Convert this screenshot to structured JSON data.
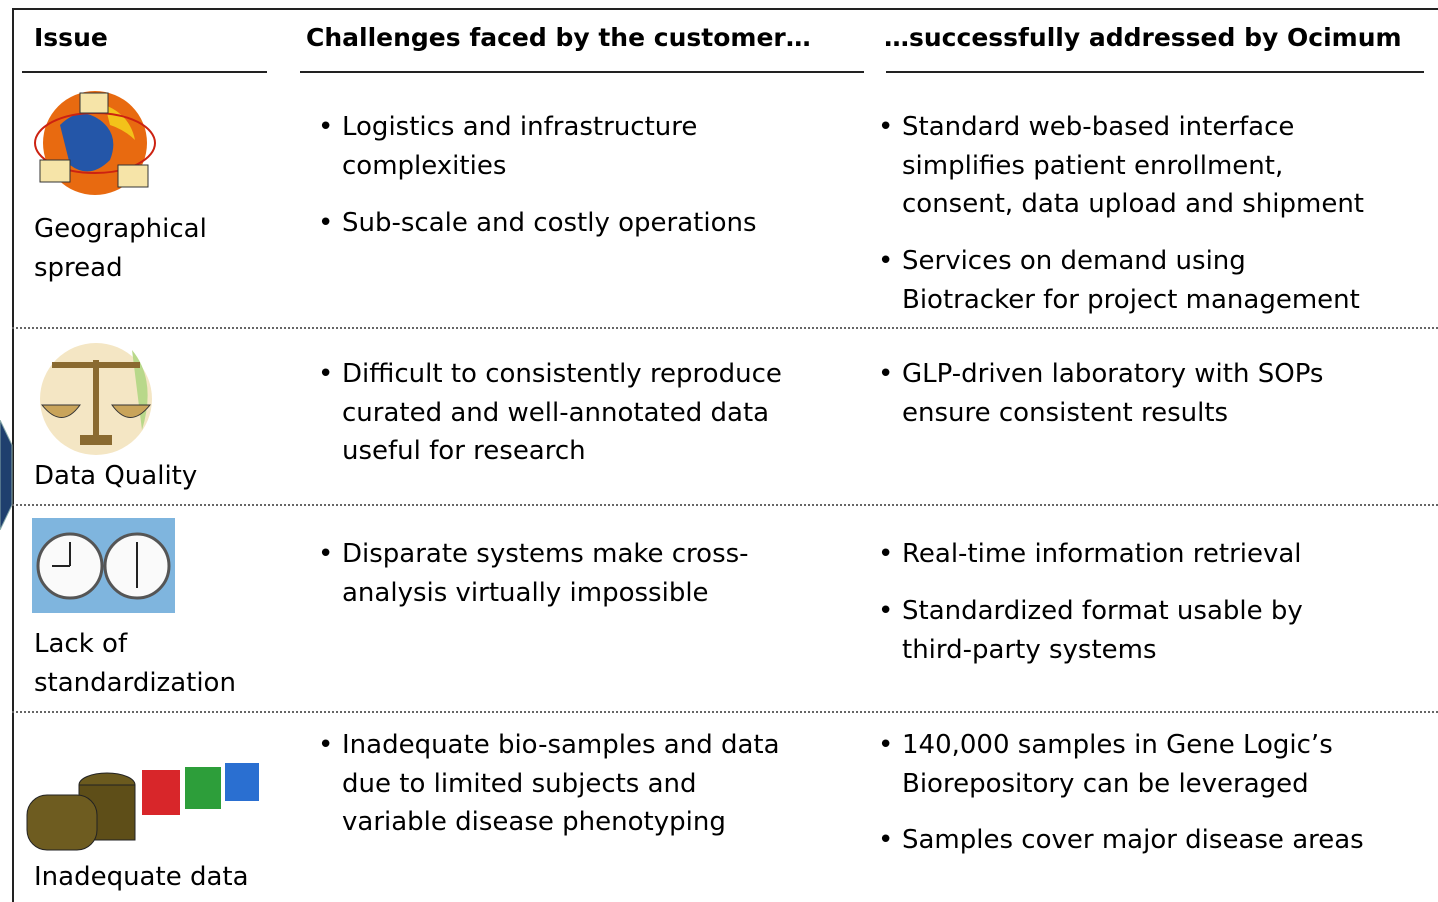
{
  "header": [
    "Issue",
    "Challenges faced by the customer…",
    "…successfully addressed by Ocimum"
  ],
  "rows": [
    {
      "issue": [
        "Geographical",
        "spread"
      ],
      "challenges": [
        [
          "Logistics and infrastructure",
          "complexities"
        ],
        [
          "Sub-scale and costly operations"
        ]
      ],
      "solutions": [
        [
          "Standard web-based interface",
          "simplifies patient enrollment,",
          "consent, data upload and shipment"
        ],
        [
          "Services on demand using",
          "Biotracker for project management"
        ]
      ]
    },
    {
      "issue": [
        "Data Quality"
      ],
      "challenges": [
        [
          "Difficult to consistently reproduce",
          "curated and well-annotated data",
          "useful for research"
        ]
      ],
      "solutions": [
        [
          "GLP-driven laboratory with SOPs",
          "ensure consistent results"
        ]
      ]
    },
    {
      "issue": [
        "Lack of",
        "standardization"
      ],
      "challenges": [
        [
          "Disparate systems make cross-",
          "analysis virtually impossible"
        ]
      ],
      "solutions": [
        [
          "Real-time information retrieval"
        ],
        [
          "Standardized format usable by",
          "third-party systems"
        ]
      ]
    },
    {
      "issue": [
        "Inadequate data"
      ],
      "challenges": [
        [
          "Inadequate bio-samples and data",
          "due to limited subjects and",
          "variable disease phenotyping"
        ]
      ],
      "solutions": [
        [
          "140,000 samples in Gene Logic’s",
          "Biorepository can be leveraged"
        ],
        [
          "Samples cover major disease areas"
        ]
      ]
    }
  ]
}
